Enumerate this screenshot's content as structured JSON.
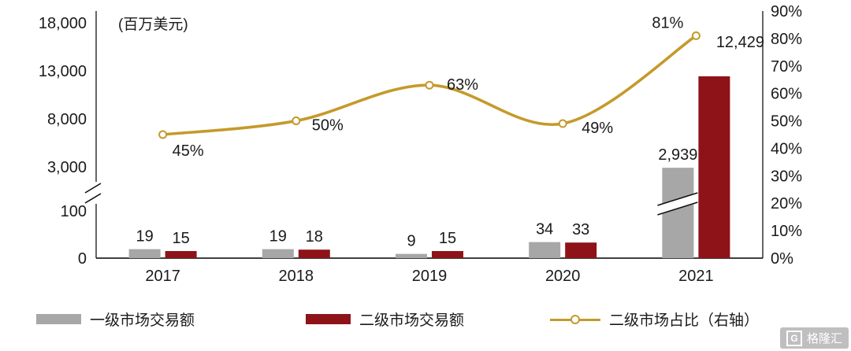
{
  "chart_data": {
    "type": "bar+line",
    "categories": [
      "2017",
      "2018",
      "2019",
      "2020",
      "2021"
    ],
    "series": [
      {
        "name": "一级市场交易额",
        "type": "bar",
        "axis": "left",
        "color": "#a7a7a7",
        "values": [
          19,
          19,
          9,
          34,
          2939
        ],
        "value_labels": [
          "19",
          "19",
          "9",
          "34",
          "2,939"
        ]
      },
      {
        "name": "二级市场交易额",
        "type": "bar",
        "axis": "left",
        "color": "#8e1318",
        "values": [
          15,
          18,
          15,
          33,
          12429
        ],
        "value_labels": [
          "15",
          "18",
          "15",
          "33",
          "12,429"
        ]
      },
      {
        "name": "二级市场占比（右轴）",
        "type": "line",
        "axis": "right",
        "color": "#c49a2b",
        "values": [
          45,
          50,
          63,
          49,
          81
        ],
        "value_labels": [
          "45%",
          "50%",
          "63%",
          "49%",
          "81%"
        ]
      }
    ],
    "left_axis": {
      "unit": "(百万美元)",
      "tick_labels": [
        "0",
        "100",
        "3,000",
        "8,000",
        "13,000",
        "18,000"
      ],
      "axis_break": true,
      "break_between": [
        "100",
        "3,000"
      ]
    },
    "right_axis": {
      "tick_labels": [
        "0%",
        "10%",
        "20%",
        "30%",
        "40%",
        "50%",
        "60%",
        "70%",
        "80%",
        "90%"
      ],
      "min": 0,
      "max": 90
    },
    "grid": false,
    "legend_position": "bottom"
  },
  "legend": [
    {
      "label": "一级市场交易额",
      "type": "bar",
      "color": "#a7a7a7"
    },
    {
      "label": "二级市场交易额",
      "type": "bar",
      "color": "#8e1318"
    },
    {
      "label": "二级市场占比（右轴）",
      "type": "line",
      "color": "#c49a2b"
    }
  ],
  "watermark": {
    "logo_letter": "G",
    "brand": "格隆汇"
  }
}
